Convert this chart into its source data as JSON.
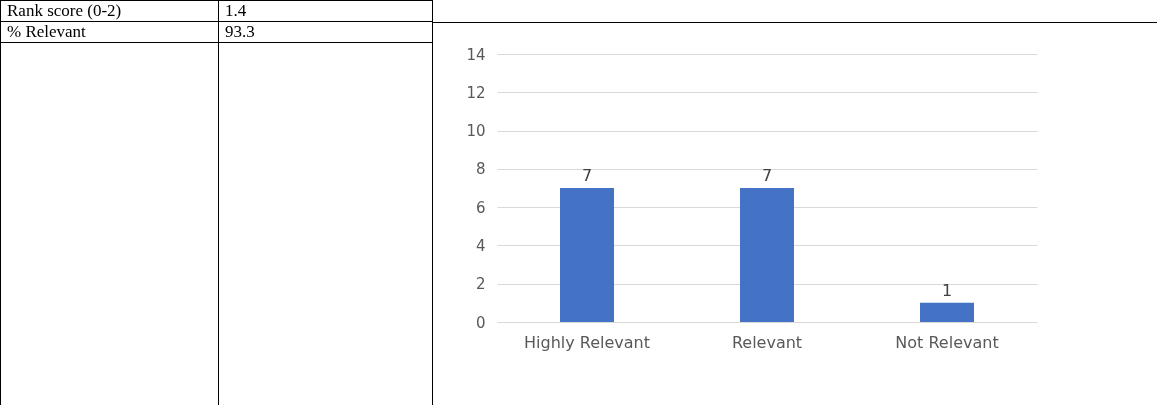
{
  "chart_data": {
    "type": "bar",
    "categories": [
      "Highly Relevant",
      "Relevant",
      "Not Relevant"
    ],
    "values": [
      7,
      7,
      1
    ],
    "color": "#4472c4",
    "ylim": [
      0,
      14
    ],
    "yticks": [
      0,
      2,
      4,
      6,
      8,
      10,
      12,
      14
    ],
    "grid": "y",
    "data_labels": true,
    "annotations": [
      "Rank score (0-2)",
      "1.4",
      "% Relevant",
      "93.3"
    ]
  }
}
